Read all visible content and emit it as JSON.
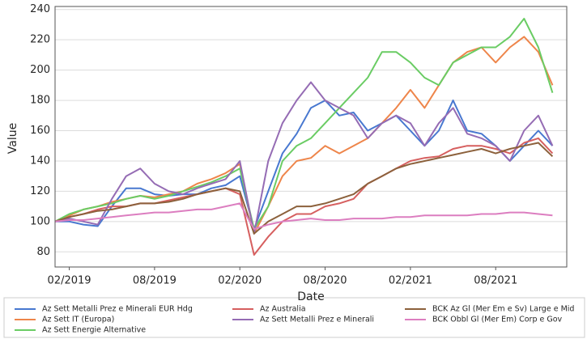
{
  "chart_data": {
    "type": "line",
    "x_label": "Date",
    "y_label": "Value",
    "x": [
      "2019-01",
      "2019-02",
      "2019-03",
      "2019-04",
      "2019-05",
      "2019-06",
      "2019-07",
      "2019-08",
      "2019-09",
      "2019-10",
      "2019-11",
      "2019-12",
      "2020-01",
      "2020-02",
      "2020-03",
      "2020-04",
      "2020-05",
      "2020-06",
      "2020-07",
      "2020-08",
      "2020-09",
      "2020-10",
      "2020-11",
      "2020-12",
      "2021-01",
      "2021-02",
      "2021-03",
      "2021-04",
      "2021-05",
      "2021-06",
      "2021-07",
      "2021-08",
      "2021-09",
      "2021-10",
      "2021-11",
      "2021-12"
    ],
    "xlim": [
      "2019-01",
      "2022-01"
    ],
    "xticks": [
      {
        "value": "2019-02",
        "label": "02/2019"
      },
      {
        "value": "2019-08",
        "label": "08/2019"
      },
      {
        "value": "2020-02",
        "label": "02/2020"
      },
      {
        "value": "2020-08",
        "label": "08/2020"
      },
      {
        "value": "2021-02",
        "label": "02/2021"
      },
      {
        "value": "2021-08",
        "label": "08/2021"
      }
    ],
    "ylim": [
      70,
      242
    ],
    "yticks": [
      80,
      100,
      120,
      140,
      160,
      180,
      200,
      220,
      240
    ],
    "grid": true,
    "series": [
      {
        "name": "Az Sett Metalli Prez e Minerali EUR Hdg",
        "color": "#4878d0",
        "values": [
          100,
          100,
          98,
          97,
          110,
          122,
          122,
          118,
          117,
          118,
          118,
          122,
          124,
          130,
          95,
          120,
          145,
          158,
          175,
          180,
          170,
          172,
          160,
          165,
          170,
          160,
          150,
          160,
          180,
          160,
          158,
          150,
          140,
          150,
          160,
          150
        ]
      },
      {
        "name": "Az Sett IT (Europa)",
        "color": "#ee854a",
        "values": [
          100,
          104,
          108,
          110,
          113,
          115,
          117,
          116,
          118,
          120,
          125,
          128,
          132,
          138,
          92,
          110,
          130,
          140,
          142,
          150,
          145,
          150,
          155,
          165,
          175,
          187,
          175,
          190,
          205,
          212,
          215,
          205,
          215,
          222,
          212,
          190
        ]
      },
      {
        "name": "Az Sett Energie Alternative",
        "color": "#6acc64",
        "values": [
          100,
          105,
          108,
          110,
          112,
          115,
          117,
          115,
          117,
          120,
          123,
          126,
          130,
          135,
          95,
          110,
          140,
          150,
          155,
          165,
          175,
          185,
          195,
          212,
          212,
          205,
          195,
          190,
          205,
          210,
          215,
          215,
          222,
          234,
          215,
          185
        ]
      },
      {
        "name": "Az Australia",
        "color": "#d65f5f",
        "values": [
          100,
          103,
          105,
          108,
          110,
          110,
          112,
          112,
          114,
          116,
          118,
          120,
          122,
          118,
          78,
          90,
          100,
          105,
          105,
          110,
          112,
          115,
          125,
          130,
          135,
          140,
          142,
          143,
          148,
          150,
          150,
          148,
          145,
          152,
          155,
          145
        ]
      },
      {
        "name": "Az Sett Metalli Prez e Minerali",
        "color": "#956cb4",
        "values": [
          100,
          102,
          100,
          98,
          115,
          130,
          135,
          125,
          120,
          118,
          122,
          125,
          128,
          140,
          92,
          140,
          165,
          180,
          192,
          180,
          175,
          170,
          155,
          165,
          170,
          165,
          150,
          165,
          175,
          158,
          155,
          150,
          140,
          160,
          170,
          150
        ]
      },
      {
        "name": "BCK Az Gl (Mer Em e Sv) Large e Mid",
        "color": "#8c613c",
        "values": [
          100,
          103,
          105,
          107,
          108,
          110,
          112,
          112,
          113,
          115,
          118,
          120,
          122,
          120,
          92,
          100,
          105,
          110,
          110,
          112,
          115,
          118,
          125,
          130,
          135,
          138,
          140,
          142,
          144,
          146,
          148,
          145,
          148,
          150,
          152,
          143
        ]
      },
      {
        "name": "BCK Obbl Gl (Mer Em) Corp e Gov",
        "color": "#dc7ec0",
        "values": [
          100,
          101,
          101,
          102,
          103,
          104,
          105,
          106,
          106,
          107,
          108,
          108,
          110,
          112,
          95,
          98,
          100,
          101,
          102,
          101,
          101,
          102,
          102,
          102,
          103,
          103,
          104,
          104,
          104,
          104,
          105,
          105,
          106,
          106,
          105,
          104
        ]
      }
    ]
  }
}
